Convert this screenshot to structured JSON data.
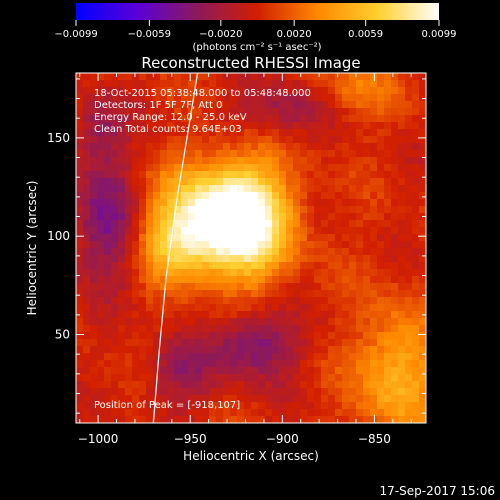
{
  "chart_data": {
    "type": "heatmap",
    "title": "Reconstructed RHESSI Image",
    "xlabel": "Heliocentric X (arcsec)",
    "ylabel": "Heliocentric Y (arcsec)",
    "xlim": [
      -1012,
      -822
    ],
    "ylim": [
      5,
      183
    ],
    "x_ticks": [
      -1000,
      -950,
      -900,
      -850
    ],
    "x_tick_labels": [
      "−1000",
      "−950",
      "−900",
      "−850"
    ],
    "y_ticks": [
      50,
      100,
      150
    ],
    "y_tick_labels": [
      "50",
      "100",
      "150"
    ],
    "colorbar": {
      "min": -0.0099,
      "max": 0.0099,
      "ticks": [
        -0.0099,
        -0.0059,
        -0.002,
        0.002,
        0.0059,
        0.0099
      ],
      "tick_labels": [
        "−0.0099",
        "−0.0059",
        "−0.0020",
        "0.0020",
        "0.0059",
        "0.0099"
      ],
      "unit_label": "(photons cm⁻² s⁻¹ asec⁻²)",
      "colors": [
        "#0000ff",
        "#5a00d8",
        "#8c1a5c",
        "#d21f00",
        "#ff8800",
        "#ffd030",
        "#ffffff"
      ]
    },
    "sources": [
      {
        "x": -921,
        "y": 108,
        "sigma_x": 18,
        "sigma_y": 20,
        "amplitude": 1.0
      },
      {
        "x": -945,
        "y": 110,
        "sigma_x": 22,
        "sigma_y": 18,
        "amplitude": 0.55
      },
      {
        "x": -958,
        "y": 95,
        "sigma_x": 14,
        "sigma_y": 12,
        "amplitude": 0.4
      },
      {
        "x": -838,
        "y": 30,
        "sigma_x": 16,
        "sigma_y": 24,
        "amplitude": 0.5
      },
      {
        "x": -862,
        "y": 175,
        "sigma_x": 18,
        "sigma_y": 10,
        "amplitude": 0.25
      }
    ],
    "negative_regions": [
      {
        "x": -995,
        "y": 108,
        "sigma_x": 14,
        "sigma_y": 22,
        "amplitude": 0.45
      },
      {
        "x": -1000,
        "y": 155,
        "sigma_x": 10,
        "sigma_y": 12,
        "amplitude": 0.3
      },
      {
        "x": -915,
        "y": 45,
        "sigma_x": 16,
        "sigma_y": 12,
        "amplitude": 0.45
      },
      {
        "x": -955,
        "y": 30,
        "sigma_x": 14,
        "sigma_y": 12,
        "amplitude": 0.3
      },
      {
        "x": -900,
        "y": 165,
        "sigma_x": 18,
        "sigma_y": 10,
        "amplitude": 0.3
      }
    ],
    "limb_points": [
      [
        -970,
        5
      ],
      [
        -967,
        40
      ],
      [
        -963,
        80
      ],
      [
        -957,
        120
      ],
      [
        -950,
        160
      ],
      [
        -946,
        183
      ]
    ],
    "annotations": [
      "18-Oct-2015 05:38:48.000 to 05:48:48.000",
      "Detectors: 1F 5F 7F, Att 0",
      "Energy Range: 12.0 - 25.0 keV",
      "Clean    Total counts: 9.64E+03"
    ],
    "peak_label": "Position of Peak = [-918,107]",
    "peak": [
      -918,
      107
    ]
  },
  "footer_timestamp": "17-Sep-2017 15:06"
}
